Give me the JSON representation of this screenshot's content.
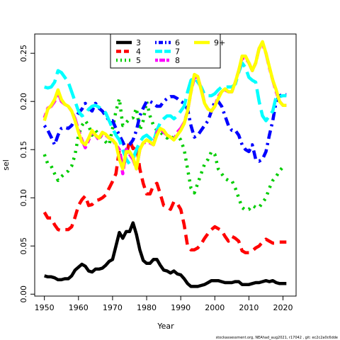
{
  "chart_data": {
    "type": "line",
    "x_label": "Year",
    "y_label": "sel",
    "footer": "stockassessment.org, NEAhad_aug2021, r17042 , git: ec2c2a0c6dde",
    "xlim": [
      1947.16,
      2023.84
    ],
    "ylim": [
      -0.002,
      0.27
    ],
    "xticks": [
      1950,
      1960,
      1970,
      1980,
      1990,
      2000,
      2010,
      2020
    ],
    "yticks": [
      {
        "value": 0,
        "label": "0.00"
      },
      {
        "value": 0.05,
        "label": "0.05"
      },
      {
        "value": 0.1,
        "label": "0.10"
      },
      {
        "value": 0.15,
        "label": "0.15"
      },
      {
        "value": 0.2,
        "label": "0.20"
      },
      {
        "value": 0.25,
        "label": "0.25"
      }
    ],
    "legend_position": "top",
    "x": [
      1950,
      1951,
      1952,
      1953,
      1954,
      1955,
      1956,
      1957,
      1958,
      1959,
      1960,
      1961,
      1962,
      1963,
      1964,
      1965,
      1966,
      1967,
      1968,
      1969,
      1970,
      1971,
      1972,
      1973,
      1974,
      1975,
      1976,
      1977,
      1978,
      1979,
      1980,
      1981,
      1982,
      1983,
      1984,
      1985,
      1986,
      1987,
      1988,
      1989,
      1990,
      1991,
      1992,
      1993,
      1994,
      1995,
      1996,
      1997,
      1998,
      1999,
      2000,
      2001,
      2002,
      2003,
      2004,
      2005,
      2006,
      2007,
      2008,
      2009,
      2010,
      2011,
      2012,
      2013,
      2014,
      2015,
      2016,
      2017,
      2018,
      2019,
      2020,
      2021
    ],
    "series": [
      {
        "name": "3",
        "color": "#000000",
        "line_style": "solid",
        "values": [
          0.019,
          0.018,
          0.018,
          0.017,
          0.015,
          0.015,
          0.016,
          0.016,
          0.019,
          0.025,
          0.028,
          0.031,
          0.029,
          0.024,
          0.023,
          0.026,
          0.026,
          0.027,
          0.03,
          0.034,
          0.036,
          0.05,
          0.064,
          0.058,
          0.065,
          0.065,
          0.074,
          0.062,
          0.046,
          0.035,
          0.032,
          0.032,
          0.036,
          0.036,
          0.03,
          0.025,
          0.024,
          0.022,
          0.024,
          0.021,
          0.02,
          0.016,
          0.011,
          0.008,
          0.008,
          0.008,
          0.009,
          0.01,
          0.012,
          0.014,
          0.014,
          0.014,
          0.013,
          0.012,
          0.012,
          0.012,
          0.013,
          0.013,
          0.01,
          0.01,
          0.01,
          0.011,
          0.012,
          0.012,
          0.013,
          0.014,
          0.013,
          0.014,
          0.012,
          0.011,
          0.011,
          0.011
        ]
      },
      {
        "name": "4",
        "color": "#ff0000",
        "line_style": "dashed",
        "values": [
          0.085,
          0.079,
          0.079,
          0.072,
          0.067,
          0.066,
          0.067,
          0.067,
          0.07,
          0.08,
          0.092,
          0.098,
          0.102,
          0.092,
          0.093,
          0.097,
          0.098,
          0.1,
          0.103,
          0.11,
          0.117,
          0.125,
          0.15,
          0.13,
          0.143,
          0.16,
          0.151,
          0.155,
          0.13,
          0.115,
          0.104,
          0.104,
          0.113,
          0.115,
          0.104,
          0.092,
          0.091,
          0.088,
          0.096,
          0.094,
          0.088,
          0.072,
          0.05,
          0.046,
          0.046,
          0.048,
          0.052,
          0.058,
          0.063,
          0.067,
          0.07,
          0.068,
          0.066,
          0.06,
          0.055,
          0.06,
          0.058,
          0.055,
          0.045,
          0.043,
          0.043,
          0.045,
          0.048,
          0.05,
          0.054,
          0.057,
          0.055,
          0.053,
          0.053,
          0.054,
          0.054,
          0.054
        ]
      },
      {
        "name": "5",
        "color": "#00cd00",
        "line_style": "dotted",
        "values": [
          0.145,
          0.135,
          0.133,
          0.125,
          0.118,
          0.122,
          0.125,
          0.128,
          0.133,
          0.145,
          0.165,
          0.175,
          0.18,
          0.175,
          0.165,
          0.17,
          0.165,
          0.162,
          0.158,
          0.155,
          0.172,
          0.19,
          0.203,
          0.175,
          0.178,
          0.182,
          0.183,
          0.193,
          0.17,
          0.18,
          0.2,
          0.185,
          0.175,
          0.17,
          0.168,
          0.165,
          0.162,
          0.165,
          0.16,
          0.165,
          0.16,
          0.15,
          0.13,
          0.11,
          0.105,
          0.115,
          0.125,
          0.135,
          0.14,
          0.148,
          0.145,
          0.13,
          0.125,
          0.12,
          0.118,
          0.118,
          0.11,
          0.1,
          0.09,
          0.087,
          0.088,
          0.092,
          0.09,
          0.09,
          0.095,
          0.1,
          0.11,
          0.118,
          0.122,
          0.128,
          0.132,
          0.132
        ]
      },
      {
        "name": "6",
        "color": "#0000ff",
        "line_style": "dotdash",
        "values": [
          0.175,
          0.17,
          0.163,
          0.155,
          0.165,
          0.172,
          0.173,
          0.172,
          0.175,
          0.182,
          0.188,
          0.192,
          0.198,
          0.193,
          0.19,
          0.198,
          0.193,
          0.19,
          0.185,
          0.18,
          0.18,
          0.172,
          0.165,
          0.158,
          0.15,
          0.155,
          0.16,
          0.17,
          0.185,
          0.193,
          0.2,
          0.2,
          0.198,
          0.195,
          0.195,
          0.2,
          0.203,
          0.205,
          0.205,
          0.203,
          0.2,
          0.198,
          0.192,
          0.175,
          0.163,
          0.165,
          0.17,
          0.175,
          0.18,
          0.19,
          0.2,
          0.2,
          0.195,
          0.185,
          0.175,
          0.17,
          0.17,
          0.165,
          0.155,
          0.15,
          0.148,
          0.155,
          0.14,
          0.138,
          0.14,
          0.148,
          0.165,
          0.18,
          0.2,
          0.206,
          0.207,
          0.207
        ]
      },
      {
        "name": "7",
        "color": "#00ffff",
        "line_style": "longdash",
        "values": [
          0.215,
          0.214,
          0.215,
          0.22,
          0.232,
          0.23,
          0.225,
          0.22,
          0.21,
          0.2,
          0.19,
          0.185,
          0.187,
          0.192,
          0.195,
          0.196,
          0.194,
          0.192,
          0.188,
          0.18,
          0.172,
          0.165,
          0.16,
          0.15,
          0.14,
          0.135,
          0.14,
          0.15,
          0.158,
          0.163,
          0.165,
          0.162,
          0.158,
          0.17,
          0.178,
          0.182,
          0.185,
          0.185,
          0.182,
          0.185,
          0.19,
          0.195,
          0.21,
          0.222,
          0.225,
          0.22,
          0.215,
          0.207,
          0.206,
          0.206,
          0.208,
          0.212,
          0.215,
          0.215,
          0.215,
          0.215,
          0.218,
          0.23,
          0.24,
          0.235,
          0.225,
          0.222,
          0.22,
          0.2,
          0.185,
          0.18,
          0.185,
          0.19,
          0.205,
          0.205,
          0.206,
          0.206
        ]
      },
      {
        "name": "8",
        "color": "#ff00ff",
        "line_style": "twodash",
        "values": [
          0.183,
          0.193,
          0.195,
          0.2,
          0.21,
          0.2,
          0.197,
          0.195,
          0.19,
          0.182,
          0.17,
          0.16,
          0.152,
          0.16,
          0.168,
          0.165,
          0.16,
          0.167,
          0.165,
          0.162,
          0.16,
          0.155,
          0.15,
          0.125,
          0.15,
          0.145,
          0.14,
          0.13,
          0.15,
          0.157,
          0.158,
          0.157,
          0.155,
          0.168,
          0.172,
          0.168,
          0.165,
          0.163,
          0.16,
          0.168,
          0.172,
          0.178,
          0.19,
          0.21,
          0.225,
          0.225,
          0.213,
          0.198,
          0.192,
          0.19,
          0.195,
          0.205,
          0.21,
          0.212,
          0.21,
          0.21,
          0.22,
          0.232,
          0.245,
          0.245,
          0.24,
          0.232,
          0.24,
          0.255,
          0.26,
          0.25,
          0.235,
          0.222,
          0.21,
          0.2,
          0.196,
          0.196
        ]
      },
      {
        "name": "9+",
        "color": "#ffff00",
        "line_style": "solid",
        "values": [
          0.18,
          0.192,
          0.196,
          0.202,
          0.212,
          0.202,
          0.197,
          0.195,
          0.19,
          0.18,
          0.168,
          0.158,
          0.155,
          0.162,
          0.17,
          0.165,
          0.162,
          0.168,
          0.166,
          0.162,
          0.16,
          0.156,
          0.14,
          0.13,
          0.148,
          0.148,
          0.142,
          0.13,
          0.15,
          0.157,
          0.16,
          0.158,
          0.155,
          0.165,
          0.172,
          0.17,
          0.165,
          0.163,
          0.16,
          0.165,
          0.17,
          0.177,
          0.19,
          0.21,
          0.228,
          0.226,
          0.212,
          0.198,
          0.192,
          0.19,
          0.195,
          0.203,
          0.21,
          0.213,
          0.21,
          0.21,
          0.22,
          0.232,
          0.247,
          0.247,
          0.24,
          0.232,
          0.24,
          0.255,
          0.262,
          0.25,
          0.236,
          0.222,
          0.212,
          0.2,
          0.196,
          0.196
        ]
      }
    ]
  }
}
